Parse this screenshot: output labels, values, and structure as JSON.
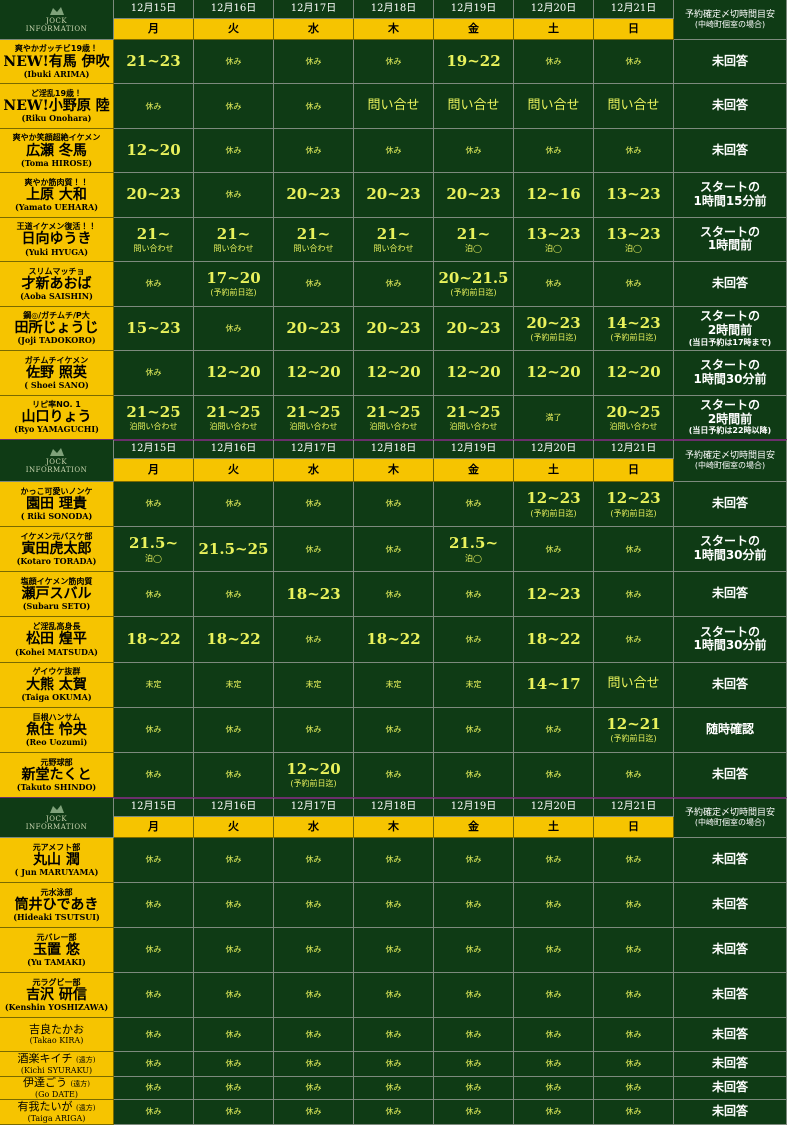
{
  "sections": [
    {
      "header": {
        "logo": [
          "JOCK",
          "INFORMATION"
        ],
        "dates": [
          "12月15日",
          "12月16日",
          "12月17日",
          "12月18日",
          "12月19日",
          "12月20日",
          "12月21日"
        ],
        "days": [
          "月",
          "火",
          "水",
          "木",
          "金",
          "土",
          "日"
        ],
        "note_title": "予約確定〆切時間目安",
        "note_sub": "(中崎町個室の場合)"
      },
      "rows": [
        {
          "tagline": "爽やかガッチビ19歳！",
          "name": "NEW!有馬 伊吹",
          "roman": "(Ibuki ARIMA)",
          "cells": [
            "21~23",
            "休み",
            "休み",
            "休み",
            "19~22",
            "休み",
            "休み"
          ],
          "note": [
            "未回答"
          ]
        },
        {
          "tagline": "ど淫乱19歳！",
          "name": "NEW!小野原 陸",
          "roman": "(Riku Onohara)",
          "cells": [
            "休み",
            "休み",
            "休み",
            "問い合せ",
            "問い合せ",
            "問い合せ",
            "問い合せ"
          ],
          "note": [
            "未回答"
          ]
        },
        {
          "tagline": "爽やか笑顔超絶イケメン",
          "name": "広瀬 冬馬",
          "roman": "(Toma HIROSE)",
          "cells": [
            "12~20",
            "休み",
            "休み",
            "休み",
            "休み",
            "休み",
            "休み"
          ],
          "note": [
            "未回答"
          ]
        },
        {
          "tagline": "爽やか筋肉質！！",
          "name": "上原 大和",
          "roman": "(Yamato UEHARA)",
          "cells": [
            "20~23",
            "休み",
            "20~23",
            "20~23",
            "20~23",
            "12~16",
            "13~23"
          ],
          "note": [
            "スタートの",
            "1時間15分前"
          ]
        },
        {
          "tagline": "王道イケメン復活！！",
          "name": "日向ゆうき",
          "roman": "(Yuki HYUGA)",
          "cells": [
            {
              "main": "21~",
              "sub": "問い合わせ"
            },
            {
              "main": "21~",
              "sub": "問い合わせ"
            },
            {
              "main": "21~",
              "sub": "問い合わせ"
            },
            {
              "main": "21~",
              "sub": "問い合わせ"
            },
            {
              "main": "21~",
              "sub": "泊◯"
            },
            {
              "main": "13~23",
              "sub": "泊◯"
            },
            {
              "main": "13~23",
              "sub": "泊◯"
            }
          ],
          "note": [
            "スタートの",
            "1時間前"
          ]
        },
        {
          "tagline": "スリムマッチョ",
          "name": "才新あおば",
          "roman": "(Aoba SAISHIN)",
          "cells": [
            "休み",
            {
              "main": "17~20",
              "sub": "(予約前日迄)"
            },
            "休み",
            "休み",
            {
              "main": "20~21.5",
              "sub": "(予約前日迄)"
            },
            "休み",
            "休み"
          ],
          "note": [
            "未回答"
          ]
        },
        {
          "tagline": "鋼◎/ガチムチ/P大",
          "name": "田所じょうじ",
          "roman": "(Joji TADOKORO)",
          "cells": [
            "15~23",
            "休み",
            "20~23",
            "20~23",
            "20~23",
            {
              "main": "20~23",
              "sub": "(予約前日迄)"
            },
            {
              "main": "14~23",
              "sub": "(予約前日迄)"
            }
          ],
          "note": [
            "スタートの",
            "2時間前"
          ],
          "note_sub": "(当日予約は17時まで)"
        },
        {
          "tagline": "ガチムチイケメン",
          "name": "佐野 照英",
          "roman": "( Shoei SANO)",
          "cells": [
            "休み",
            "12~20",
            "12~20",
            "12~20",
            "12~20",
            "12~20",
            "12~20"
          ],
          "note": [
            "スタートの",
            "1時間30分前"
          ]
        },
        {
          "tagline": "リピ率NO. 1",
          "name": "山口りょう",
          "roman": "(Ryo YAMAGUCHI)",
          "cells": [
            {
              "main": "21~25",
              "sub": "泊問い合わせ"
            },
            {
              "main": "21~25",
              "sub": "泊問い合わせ"
            },
            {
              "main": "21~25",
              "sub": "泊問い合わせ"
            },
            {
              "main": "21~25",
              "sub": "泊問い合わせ"
            },
            {
              "main": "21~25",
              "sub": "泊問い合わせ"
            },
            "満了",
            {
              "main": "20~25",
              "sub": "泊問い合わせ"
            }
          ],
          "note": [
            "スタートの",
            "2時間前"
          ],
          "note_sub": "(当日予約は22時以降)"
        }
      ]
    },
    {
      "header": {
        "logo": [
          "JOCK",
          "INFORMATION"
        ],
        "dates": [
          "12月15日",
          "12月16日",
          "12月17日",
          "12月18日",
          "12月19日",
          "12月20日",
          "12月21日"
        ],
        "days": [
          "月",
          "火",
          "水",
          "木",
          "金",
          "土",
          "日"
        ],
        "note_title": "予約確定〆切時間目安",
        "note_sub": "(中崎町個室の場合)"
      },
      "rows": [
        {
          "tagline": "かっこ可愛いノンケ",
          "name": "園田 理貴",
          "roman": "( Riki SONODA)",
          "cells": [
            "休み",
            "休み",
            "休み",
            "休み",
            "休み",
            {
              "main": "12~23",
              "sub": "(予約前日迄)"
            },
            {
              "main": "12~23",
              "sub": "(予約前日迄)"
            }
          ],
          "note": [
            "未回答"
          ]
        },
        {
          "tagline": "イケメン元バスケ部",
          "name": "寅田虎太郎",
          "roman": "(Kotaro TORADA)",
          "cells": [
            {
              "main": "21.5~",
              "sub": "泊◯"
            },
            "21.5~25",
            "休み",
            "休み",
            {
              "main": "21.5~",
              "sub": "泊◯"
            },
            "休み",
            "休み"
          ],
          "note": [
            "スタートの",
            "1時間30分前"
          ]
        },
        {
          "tagline": "塩顔イケメン筋肉質",
          "name": "瀬戸スバル",
          "roman": "(Subaru SETO)",
          "cells": [
            "休み",
            "休み",
            "18~23",
            "休み",
            "休み",
            "12~23",
            "休み"
          ],
          "note": [
            "未回答"
          ]
        },
        {
          "tagline": "ど淫乱高身長",
          "name": "松田 煌平",
          "roman": "(Kohei MATSUDA)",
          "cells": [
            "18~22",
            "18~22",
            "休み",
            "18~22",
            "休み",
            "18~22",
            "休み"
          ],
          "note": [
            "スタートの",
            "1時間30分前"
          ]
        },
        {
          "tagline": "ゲイウケ抜群",
          "name": "大熊 太賀",
          "roman": "(Taiga OKUMA)",
          "cells": [
            "未定",
            "未定",
            "未定",
            "未定",
            "未定",
            "14~17",
            "問い合せ"
          ],
          "note": [
            "未回答"
          ]
        },
        {
          "tagline": "巨根ハンサム",
          "name": "魚住 怜央",
          "roman": "(Reo Uozumi)",
          "cells": [
            "休み",
            "休み",
            "休み",
            "休み",
            "休み",
            "休み",
            {
              "main": "12~21",
              "sub": "(予約前日迄)"
            }
          ],
          "note": [
            "随時確認"
          ]
        },
        {
          "tagline": "元野球部",
          "name": "新堂たくと",
          "roman": "(Takuto SHINDO)",
          "cells": [
            "休み",
            "休み",
            {
              "main": "12~20",
              "sub": "(予約前日迄)"
            },
            "休み",
            "休み",
            "休み",
            "休み"
          ],
          "note": [
            "未回答"
          ]
        }
      ]
    },
    {
      "header": {
        "logo": [
          "JOCK",
          "INFORMATION"
        ],
        "dates": [
          "12月15日",
          "12月16日",
          "12月17日",
          "12月18日",
          "12月19日",
          "12月20日",
          "12月21日"
        ],
        "days": [
          "月",
          "火",
          "水",
          "木",
          "金",
          "土",
          "日"
        ],
        "note_title": "予約確定〆切時間目安",
        "note_sub": "(中崎町個室の場合)"
      },
      "rows": [
        {
          "tagline": "元アメフト部",
          "name": "丸山 潤",
          "roman": "( Jun MARUYAMA)",
          "cells": [
            "休み",
            "休み",
            "休み",
            "休み",
            "休み",
            "休み",
            "休み"
          ],
          "note": [
            "未回答"
          ]
        },
        {
          "tagline": "元水泳部",
          "name": "筒井ひであき",
          "roman": "(Hideaki TSUTSUI)",
          "cells": [
            "休み",
            "休み",
            "休み",
            "休み",
            "休み",
            "休み",
            "休み"
          ],
          "note": [
            "未回答"
          ]
        },
        {
          "tagline": "元バレー部",
          "name": "玉置 悠",
          "roman": "(Yu TAMAKI)",
          "cells": [
            "休み",
            "休み",
            "休み",
            "休み",
            "休み",
            "休み",
            "休み"
          ],
          "note": [
            "未回答"
          ]
        },
        {
          "tagline": "元ラグビー部",
          "name": "吉沢 研信",
          "roman": "(Kenshin YOSHIZAWA)",
          "cells": [
            "休み",
            "休み",
            "休み",
            "休み",
            "休み",
            "休み",
            "休み"
          ],
          "note": [
            "未回答"
          ]
        },
        {
          "name": "吉良たかお",
          "roman": "(Takao KIRA)",
          "cells": [
            "休み",
            "休み",
            "休み",
            "休み",
            "休み",
            "休み",
            "休み"
          ],
          "note": [
            "未回答"
          ]
        },
        {
          "name": "酒楽キイチ",
          "remote": "(遠方)",
          "roman": "(Kichi SYURAKU)",
          "cells": [
            "休み",
            "休み",
            "休み",
            "休み",
            "休み",
            "休み",
            "休み"
          ],
          "note": [
            "未回答"
          ]
        },
        {
          "name": "伊達ごう",
          "remote": "(遠方)",
          "roman": "(Go DATE)",
          "cells": [
            "休み",
            "休み",
            "休み",
            "休み",
            "休み",
            "休み",
            "休み"
          ],
          "note": [
            "未回答"
          ]
        },
        {
          "name": "有我たいが",
          "remote": "(遠方)",
          "roman": "(Taiga ARIGA)",
          "cells": [
            "休み",
            "休み",
            "休み",
            "休み",
            "休み",
            "休み",
            "休み"
          ],
          "note": [
            "未回答"
          ]
        }
      ]
    }
  ]
}
